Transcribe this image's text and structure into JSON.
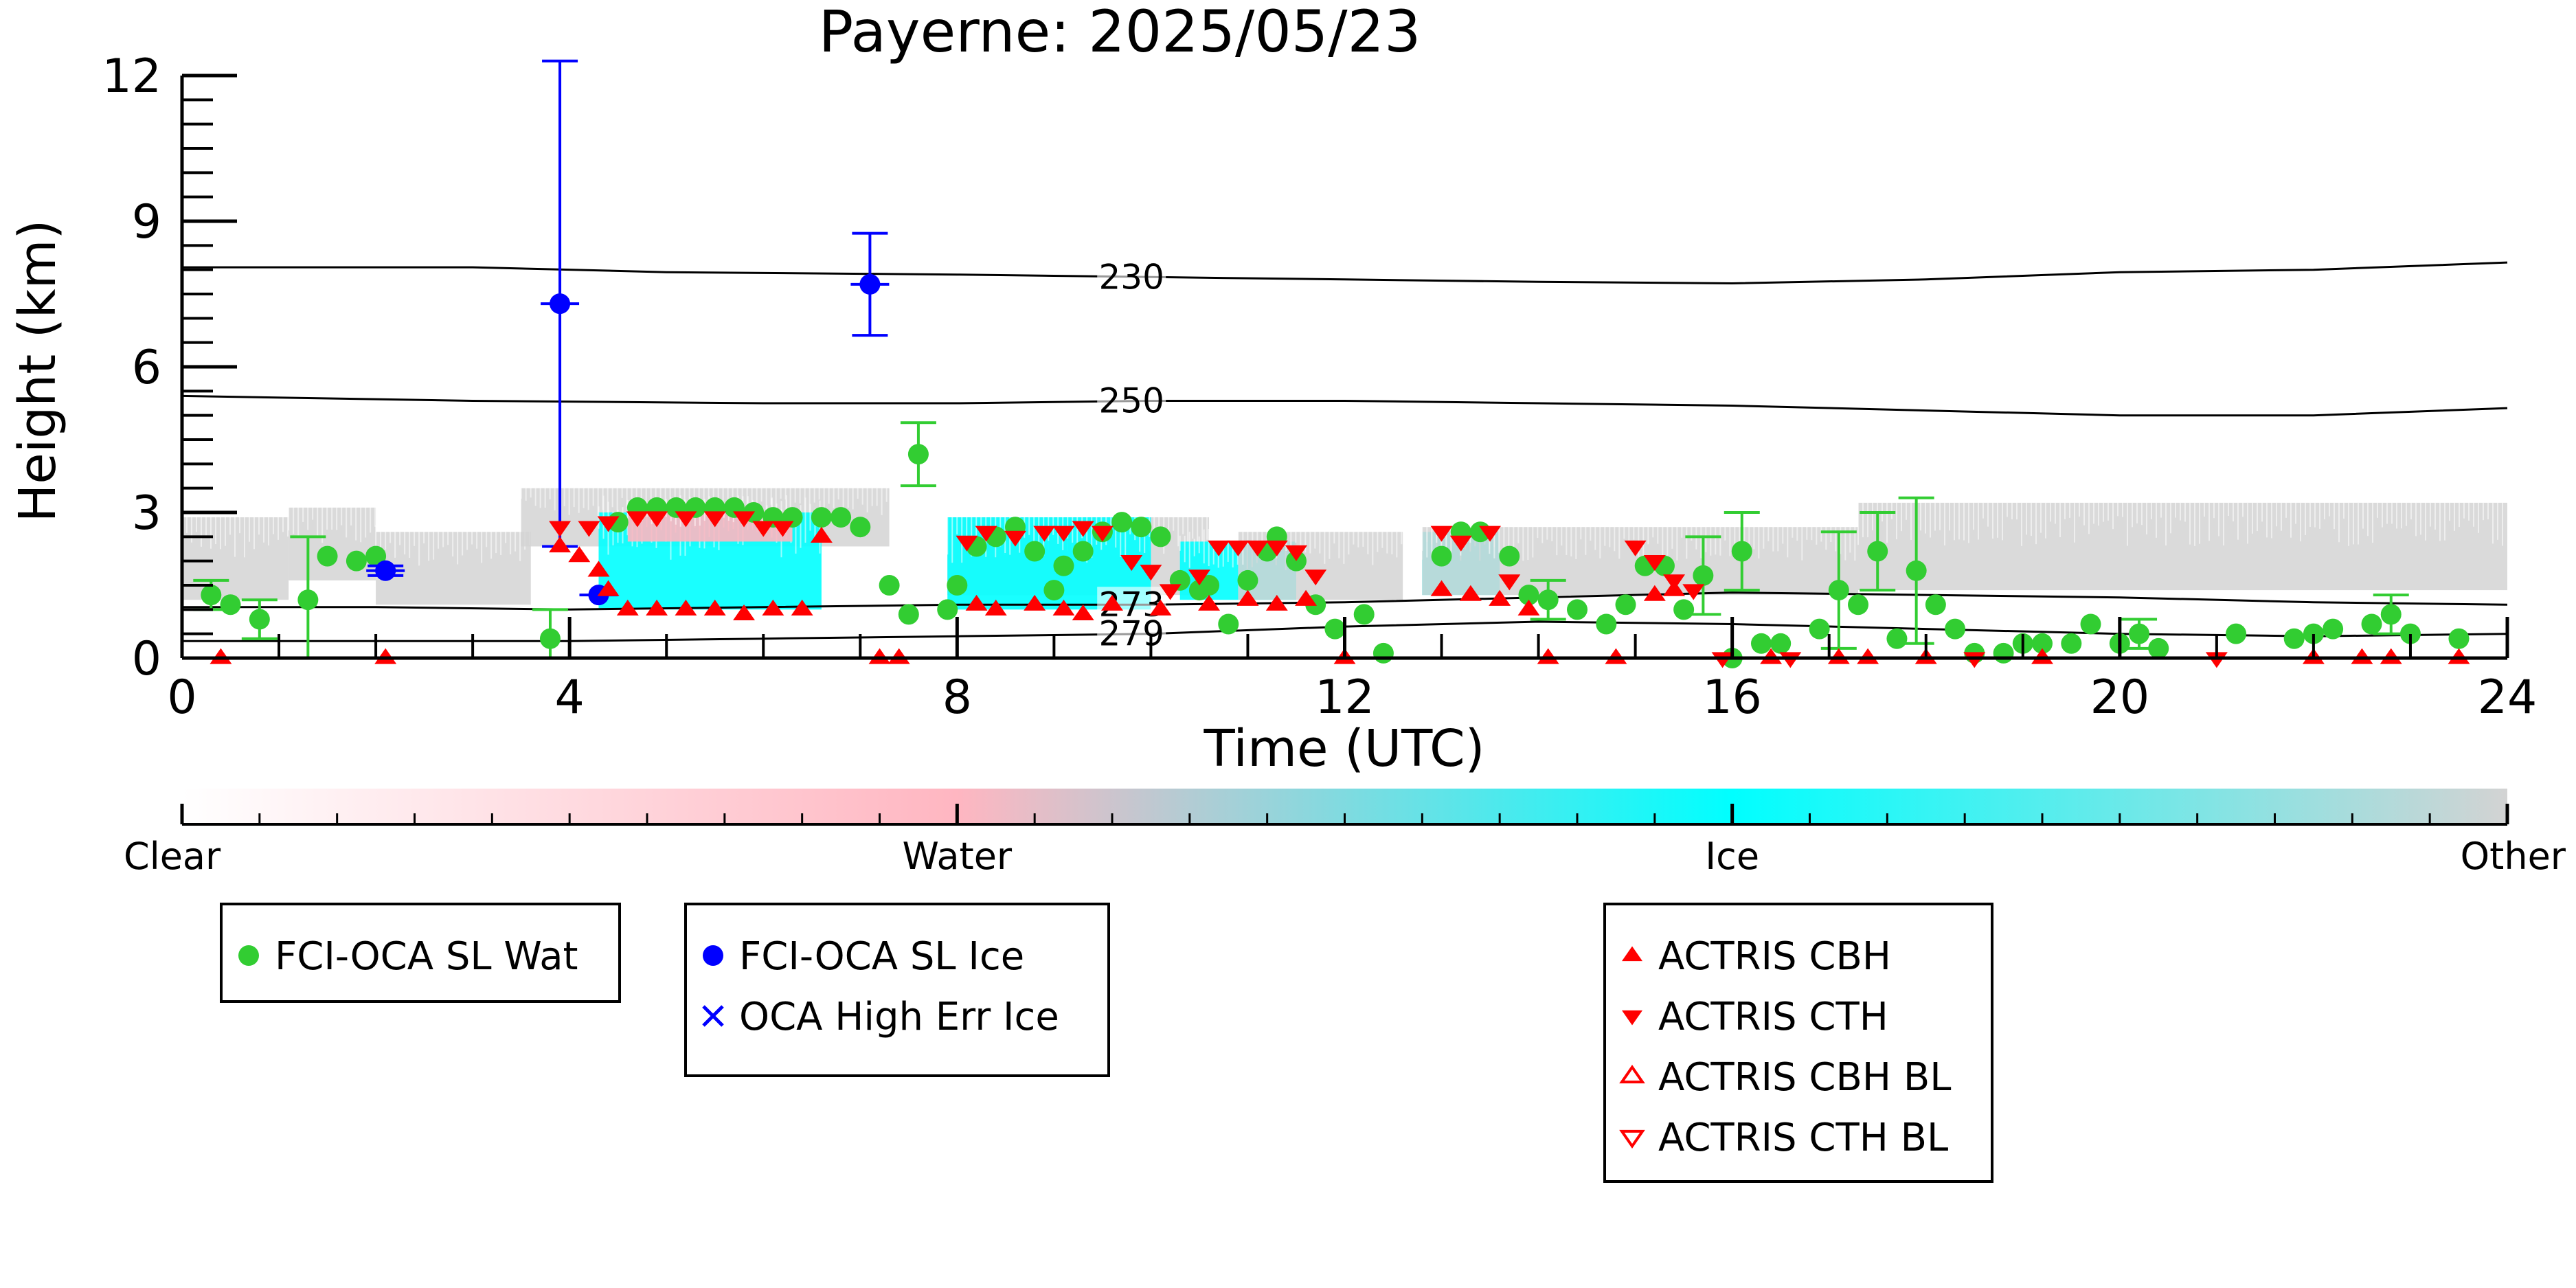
{
  "chart_data": {
    "type": "scatter",
    "title": "Payerne: 2025/05/23",
    "xlabel": "Time (UTC)",
    "ylabel": "Height (km)",
    "xlim": [
      0,
      24
    ],
    "ylim": [
      0,
      12
    ],
    "xticks": [
      0,
      4,
      8,
      12,
      16,
      20,
      24
    ],
    "yticks": [
      0,
      3,
      6,
      9,
      12
    ],
    "grid": false,
    "isotherms": [
      {
        "label": "230",
        "label_x": 9.8,
        "points": [
          [
            0,
            8.05
          ],
          [
            3,
            8.05
          ],
          [
            5,
            7.95
          ],
          [
            8,
            7.9
          ],
          [
            10,
            7.85
          ],
          [
            12,
            7.8
          ],
          [
            14,
            7.75
          ],
          [
            16,
            7.72
          ],
          [
            18,
            7.8
          ],
          [
            20,
            7.95
          ],
          [
            22,
            8.0
          ],
          [
            24,
            8.15
          ]
        ]
      },
      {
        "label": "250",
        "label_x": 9.8,
        "points": [
          [
            0,
            5.4
          ],
          [
            3,
            5.3
          ],
          [
            6,
            5.25
          ],
          [
            8,
            5.25
          ],
          [
            10,
            5.3
          ],
          [
            12,
            5.3
          ],
          [
            14,
            5.25
          ],
          [
            16,
            5.2
          ],
          [
            18,
            5.1
          ],
          [
            20,
            5.0
          ],
          [
            22,
            5.0
          ],
          [
            24,
            5.15
          ]
        ]
      },
      {
        "label": "273",
        "label_x": 9.8,
        "points": [
          [
            0,
            1.05
          ],
          [
            2,
            1.05
          ],
          [
            4,
            1.0
          ],
          [
            6,
            1.05
          ],
          [
            8,
            1.1
          ],
          [
            10,
            1.1
          ],
          [
            12,
            1.15
          ],
          [
            14,
            1.25
          ],
          [
            16,
            1.35
          ],
          [
            18,
            1.3
          ],
          [
            20,
            1.25
          ],
          [
            22,
            1.15
          ],
          [
            24,
            1.1
          ]
        ]
      },
      {
        "label": "279",
        "label_x": 9.8,
        "points": [
          [
            0,
            0.35
          ],
          [
            2,
            0.35
          ],
          [
            4,
            0.35
          ],
          [
            6,
            0.4
          ],
          [
            8,
            0.45
          ],
          [
            10,
            0.5
          ],
          [
            12,
            0.65
          ],
          [
            14,
            0.75
          ],
          [
            16,
            0.7
          ],
          [
            18,
            0.6
          ],
          [
            20,
            0.5
          ],
          [
            22,
            0.45
          ],
          [
            24,
            0.5
          ]
        ]
      }
    ],
    "colorbar": {
      "stops": [
        "#ffffff",
        "#ffb6c1",
        "#00ffff",
        "#d3d3d3"
      ],
      "labels": [
        "Clear",
        "Water",
        "Ice",
        "Other"
      ]
    },
    "legend": [
      {
        "label": "FCI-OCA SL Wat",
        "color": "#32cd32",
        "marker": "circle"
      },
      {
        "label": "FCI-OCA SL Ice",
        "color": "#0000ff",
        "marker": "circle"
      },
      {
        "label": "OCA High Err Ice",
        "color": "#0000ff",
        "marker": "x"
      },
      {
        "label": "ACTRIS CBH",
        "color": "#ff0000",
        "marker": "triangle-up"
      },
      {
        "label": "ACTRIS CTH",
        "color": "#ff0000",
        "marker": "triangle-down"
      },
      {
        "label": "ACTRIS CBH BL",
        "color": "#ff0000",
        "marker": "triangle-up-open"
      },
      {
        "label": "ACTRIS CTH BL",
        "color": "#ff0000",
        "marker": "triangle-down-open"
      }
    ],
    "cloud_regions": [
      {
        "type": "Other",
        "x0": 0.0,
        "x1": 1.1,
        "y0": 1.2,
        "y1": 2.9
      },
      {
        "type": "Other",
        "x0": 1.1,
        "x1": 2.0,
        "y0": 1.6,
        "y1": 3.1
      },
      {
        "type": "Other",
        "x0": 2.0,
        "x1": 3.6,
        "y0": 1.1,
        "y1": 2.6
      },
      {
        "type": "Other",
        "x0": 3.5,
        "x1": 7.3,
        "y0": 2.3,
        "y1": 3.5
      },
      {
        "type": "Ice",
        "x0": 4.3,
        "x1": 6.6,
        "y0": 1.0,
        "y1": 3.0
      },
      {
        "type": "Water",
        "x0": 4.6,
        "x1": 6.3,
        "y0": 2.4,
        "y1": 3.0
      },
      {
        "type": "Other",
        "x0": 7.9,
        "x1": 10.6,
        "y0": 1.3,
        "y1": 2.9
      },
      {
        "type": "Ice",
        "x0": 7.9,
        "x1": 10.0,
        "y0": 1.0,
        "y1": 2.9
      },
      {
        "type": "Ice",
        "x0": 10.3,
        "x1": 11.5,
        "y0": 1.2,
        "y1": 2.4
      },
      {
        "type": "Other",
        "x0": 10.9,
        "x1": 12.6,
        "y0": 1.2,
        "y1": 2.6
      },
      {
        "type": "Ice",
        "x0": 12.8,
        "x1": 13.6,
        "y0": 1.3,
        "y1": 2.6
      },
      {
        "type": "Other",
        "x0": 12.8,
        "x1": 17.3,
        "y0": 1.3,
        "y1": 2.7
      },
      {
        "type": "Other",
        "x0": 17.3,
        "x1": 24.0,
        "y0": 1.4,
        "y1": 3.2
      }
    ],
    "series": [
      {
        "name": "FCI-OCA SL Wat",
        "color": "#32cd32",
        "marker": "circle",
        "points": [
          [
            0.3,
            1.3,
            0.3
          ],
          [
            0.5,
            1.1,
            0
          ],
          [
            0.8,
            0.8,
            0.4
          ],
          [
            1.3,
            1.2,
            1.3
          ],
          [
            1.5,
            2.1,
            0
          ],
          [
            1.8,
            2.0,
            0
          ],
          [
            2.0,
            2.1,
            0
          ],
          [
            3.8,
            0.4,
            0.6
          ],
          [
            4.5,
            2.8,
            0
          ],
          [
            4.7,
            3.1,
            0
          ],
          [
            4.9,
            3.1,
            0
          ],
          [
            5.1,
            3.1,
            0
          ],
          [
            5.3,
            3.1,
            0
          ],
          [
            5.5,
            3.1,
            0
          ],
          [
            5.7,
            3.1,
            0
          ],
          [
            5.9,
            3.0,
            0
          ],
          [
            6.1,
            2.9,
            0
          ],
          [
            6.3,
            2.9,
            0
          ],
          [
            6.6,
            2.9,
            0
          ],
          [
            6.8,
            2.9,
            0
          ],
          [
            7.0,
            2.7,
            0
          ],
          [
            7.3,
            1.5,
            0
          ],
          [
            7.5,
            0.9,
            0
          ],
          [
            7.6,
            4.2,
            0.65
          ],
          [
            7.9,
            1.0,
            0
          ],
          [
            8.0,
            1.5,
            0
          ],
          [
            8.2,
            2.3,
            0
          ],
          [
            8.4,
            2.5,
            0
          ],
          [
            8.6,
            2.7,
            0
          ],
          [
            8.8,
            2.2,
            0
          ],
          [
            9.0,
            1.4,
            0
          ],
          [
            9.1,
            1.9,
            0
          ],
          [
            9.3,
            2.2,
            0
          ],
          [
            9.5,
            2.6,
            0
          ],
          [
            9.7,
            2.8,
            0
          ],
          [
            9.9,
            2.7,
            0
          ],
          [
            10.1,
            2.5,
            0
          ],
          [
            10.3,
            1.6,
            0
          ],
          [
            10.5,
            1.4,
            0
          ],
          [
            10.6,
            1.5,
            0
          ],
          [
            10.8,
            0.7,
            0
          ],
          [
            11.0,
            1.6,
            0
          ],
          [
            11.2,
            2.2,
            0
          ],
          [
            11.3,
            2.5,
            0
          ],
          [
            11.5,
            2.0,
            0
          ],
          [
            11.7,
            1.1,
            0
          ],
          [
            11.9,
            0.6,
            0
          ],
          [
            12.2,
            0.9,
            0
          ],
          [
            12.4,
            0.1,
            0
          ],
          [
            13.0,
            2.1,
            0
          ],
          [
            13.2,
            2.6,
            0
          ],
          [
            13.4,
            2.6,
            0
          ],
          [
            13.7,
            2.1,
            0
          ],
          [
            13.9,
            1.3,
            0
          ],
          [
            14.1,
            1.2,
            0.4
          ],
          [
            14.4,
            1.0,
            0
          ],
          [
            14.7,
            0.7,
            0
          ],
          [
            14.9,
            1.1,
            0
          ],
          [
            15.1,
            1.9,
            0
          ],
          [
            15.3,
            1.9,
            0
          ],
          [
            15.5,
            1.0,
            0
          ],
          [
            15.7,
            1.7,
            0.8
          ],
          [
            16.0,
            0.0,
            0
          ],
          [
            16.1,
            2.2,
            0.8
          ],
          [
            16.3,
            0.3,
            0
          ],
          [
            16.5,
            0.3,
            0
          ],
          [
            16.9,
            0.6,
            0
          ],
          [
            17.1,
            1.4,
            1.2
          ],
          [
            17.3,
            1.1,
            0
          ],
          [
            17.5,
            2.2,
            0.8
          ],
          [
            17.7,
            0.4,
            0
          ],
          [
            17.9,
            1.8,
            1.5
          ],
          [
            18.1,
            1.1,
            0
          ],
          [
            18.3,
            0.6,
            0
          ],
          [
            18.5,
            0.1,
            0
          ],
          [
            18.8,
            0.1,
            0
          ],
          [
            19.0,
            0.3,
            0
          ],
          [
            19.2,
            0.3,
            0
          ],
          [
            19.5,
            0.3,
            0
          ],
          [
            19.7,
            0.7,
            0
          ],
          [
            20.0,
            0.3,
            0
          ],
          [
            20.2,
            0.5,
            0.3
          ],
          [
            20.4,
            0.2,
            0
          ],
          [
            21.2,
            0.5,
            0
          ],
          [
            21.8,
            0.4,
            0
          ],
          [
            22.0,
            0.5,
            0
          ],
          [
            22.2,
            0.6,
            0
          ],
          [
            22.6,
            0.7,
            0
          ],
          [
            22.8,
            0.9,
            0.4
          ],
          [
            23.0,
            0.5,
            0
          ],
          [
            23.5,
            0.4,
            0
          ]
        ]
      },
      {
        "name": "FCI-OCA SL Ice",
        "color": "#0000ff",
        "marker": "circle",
        "points": [
          [
            2.1,
            1.8,
            0.1
          ],
          [
            3.9,
            7.3,
            5.0
          ],
          [
            4.3,
            1.3,
            0
          ],
          [
            7.1,
            7.7,
            1.05
          ]
        ]
      },
      {
        "name": "ACTRIS CBH",
        "color": "#ff0000",
        "marker": "triangle-up",
        "points": [
          [
            0.4,
            0.0
          ],
          [
            2.1,
            0.0
          ],
          [
            3.9,
            2.3
          ],
          [
            4.1,
            2.1
          ],
          [
            4.3,
            1.8
          ],
          [
            4.4,
            1.4
          ],
          [
            4.6,
            1.0
          ],
          [
            4.9,
            1.0
          ],
          [
            5.2,
            1.0
          ],
          [
            5.5,
            1.0
          ],
          [
            5.8,
            0.9
          ],
          [
            6.1,
            1.0
          ],
          [
            6.4,
            1.0
          ],
          [
            6.6,
            2.5
          ],
          [
            7.2,
            0.0
          ],
          [
            7.4,
            0.0
          ],
          [
            8.2,
            1.1
          ],
          [
            8.4,
            1.0
          ],
          [
            8.8,
            1.1
          ],
          [
            9.1,
            1.0
          ],
          [
            9.3,
            0.9
          ],
          [
            9.6,
            1.1
          ],
          [
            10.1,
            1.0
          ],
          [
            10.6,
            1.1
          ],
          [
            11.0,
            1.2
          ],
          [
            11.3,
            1.1
          ],
          [
            11.6,
            1.2
          ],
          [
            12.0,
            0.0
          ],
          [
            13.0,
            1.4
          ],
          [
            13.3,
            1.3
          ],
          [
            13.6,
            1.2
          ],
          [
            13.9,
            1.0
          ],
          [
            14.1,
            0.0
          ],
          [
            14.8,
            0.0
          ],
          [
            15.2,
            1.3
          ],
          [
            15.4,
            1.4
          ],
          [
            16.4,
            0.0
          ],
          [
            17.1,
            0.0
          ],
          [
            17.4,
            0.0
          ],
          [
            18.0,
            0.0
          ],
          [
            19.2,
            0.0
          ],
          [
            22.0,
            0.0
          ],
          [
            22.5,
            0.0
          ],
          [
            22.8,
            0.0
          ],
          [
            23.5,
            0.0
          ]
        ]
      },
      {
        "name": "ACTRIS CTH",
        "color": "#ff0000",
        "marker": "triangle-down",
        "points": [
          [
            3.9,
            2.7
          ],
          [
            4.2,
            2.7
          ],
          [
            4.4,
            2.8
          ],
          [
            4.7,
            2.9
          ],
          [
            4.9,
            2.9
          ],
          [
            5.2,
            2.9
          ],
          [
            5.5,
            2.9
          ],
          [
            5.8,
            2.9
          ],
          [
            6.0,
            2.7
          ],
          [
            6.2,
            2.7
          ],
          [
            8.1,
            2.4
          ],
          [
            8.3,
            2.6
          ],
          [
            8.6,
            2.5
          ],
          [
            8.9,
            2.6
          ],
          [
            9.1,
            2.6
          ],
          [
            9.3,
            2.7
          ],
          [
            9.5,
            2.6
          ],
          [
            9.8,
            2.0
          ],
          [
            10.0,
            1.8
          ],
          [
            10.2,
            1.4
          ],
          [
            10.5,
            1.7
          ],
          [
            10.7,
            2.3
          ],
          [
            10.9,
            2.3
          ],
          [
            11.1,
            2.3
          ],
          [
            11.3,
            2.3
          ],
          [
            11.5,
            2.2
          ],
          [
            11.7,
            1.7
          ],
          [
            13.0,
            2.6
          ],
          [
            13.2,
            2.4
          ],
          [
            13.5,
            2.6
          ],
          [
            13.7,
            1.6
          ],
          [
            15.0,
            2.3
          ],
          [
            15.2,
            2.0
          ],
          [
            15.4,
            1.6
          ],
          [
            15.6,
            1.4
          ],
          [
            15.9,
            0.0
          ],
          [
            16.6,
            0.0
          ],
          [
            18.5,
            0.0
          ],
          [
            21.0,
            0.0
          ]
        ]
      }
    ]
  }
}
